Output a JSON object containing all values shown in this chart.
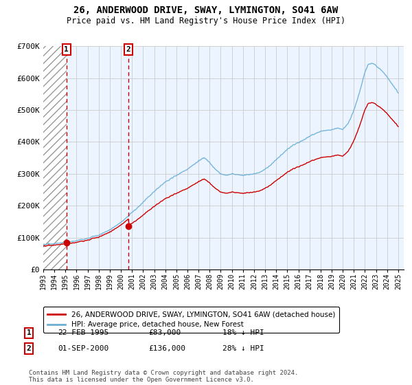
{
  "title": "26, ANDERWOOD DRIVE, SWAY, LYMINGTON, SO41 6AW",
  "subtitle": "Price paid vs. HM Land Registry's House Price Index (HPI)",
  "legend_line1": "26, ANDERWOOD DRIVE, SWAY, LYMINGTON, SO41 6AW (detached house)",
  "legend_line2": "HPI: Average price, detached house, New Forest",
  "sale1_date": "22-FEB-1995",
  "sale1_price": 83000,
  "sale1_label": "18% ↓ HPI",
  "sale2_date": "01-SEP-2000",
  "sale2_price": 136000,
  "sale2_label": "28% ↓ HPI",
  "footer": "Contains HM Land Registry data © Crown copyright and database right 2024.\nThis data is licensed under the Open Government Licence v3.0.",
  "hpi_color": "#6aaed6",
  "price_color": "#cc0000",
  "sale_marker_color": "#cc0000",
  "vline_color": "#cc0000",
  "ylim": [
    0,
    700000
  ],
  "yticks": [
    0,
    100000,
    200000,
    300000,
    400000,
    500000,
    600000,
    700000
  ],
  "ytick_labels": [
    "£0",
    "£100K",
    "£200K",
    "£300K",
    "£400K",
    "£500K",
    "£600K",
    "£700K"
  ],
  "hpi_knots_x": [
    1993,
    1994,
    1995,
    1996,
    1997,
    1998,
    1999,
    2000,
    2001,
    2002,
    2003,
    2004,
    2005,
    2006,
    2007,
    2007.5,
    2008,
    2008.5,
    2009,
    2009.5,
    2010,
    2010.5,
    2011,
    2011.5,
    2012,
    2012.5,
    2013,
    2013.5,
    2014,
    2014.5,
    2015,
    2015.5,
    2016,
    2016.5,
    2017,
    2017.5,
    2018,
    2018.5,
    2019,
    2019.5,
    2020,
    2020.5,
    2021,
    2021.5,
    2022,
    2022.3,
    2022.7,
    2023,
    2023.5,
    2024,
    2024.5,
    2025
  ],
  "hpi_knots_y": [
    78000,
    80000,
    84000,
    90000,
    98000,
    108000,
    125000,
    148000,
    178000,
    210000,
    245000,
    275000,
    295000,
    315000,
    340000,
    350000,
    335000,
    315000,
    300000,
    295000,
    300000,
    298000,
    295000,
    298000,
    300000,
    305000,
    315000,
    328000,
    345000,
    362000,
    378000,
    390000,
    400000,
    408000,
    420000,
    428000,
    435000,
    438000,
    440000,
    445000,
    440000,
    460000,
    500000,
    555000,
    620000,
    645000,
    648000,
    640000,
    625000,
    605000,
    580000,
    555000
  ]
}
